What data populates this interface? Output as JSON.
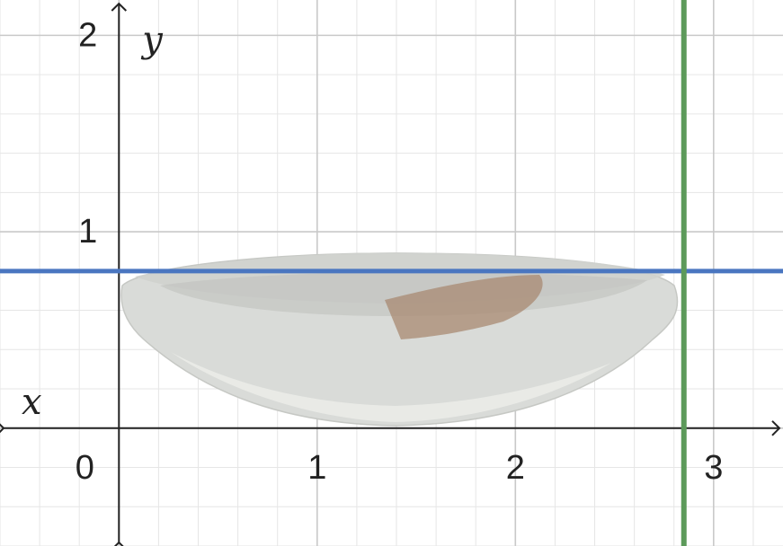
{
  "graph": {
    "x_label": "x",
    "y_label": "y",
    "x_ticks": [
      "0",
      "1",
      "2",
      "3"
    ],
    "y_ticks": [
      "1",
      "2"
    ],
    "x_range": [
      -0.6,
      3.35
    ],
    "y_range": [
      -0.6,
      2.18
    ],
    "grid": true,
    "horizontal_line": {
      "y": 0.8,
      "color": "#4a76c0"
    },
    "vertical_line": {
      "x": 2.85,
      "color": "#5c9a5a"
    },
    "image_object": "bowl-photo"
  }
}
